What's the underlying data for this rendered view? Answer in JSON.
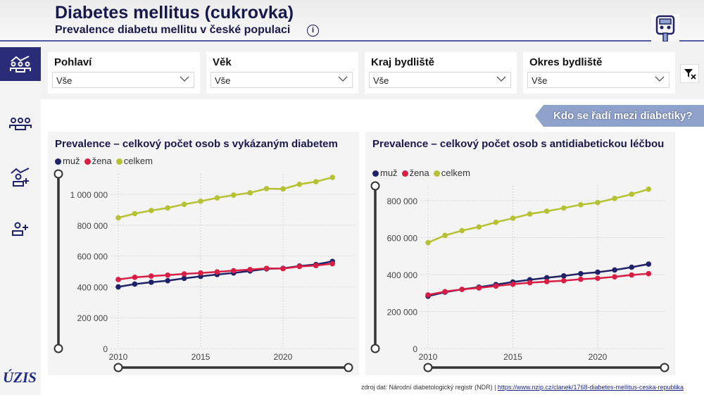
{
  "header": {
    "title": "Diabetes mellitus (cukrovka)",
    "subtitle": "Prevalence diabetu mellitu v české populaci",
    "info_icon": "info-icon",
    "right_icon": "glucometer-icon"
  },
  "sidebar": {
    "items": [
      {
        "icon": "population-trend-icon",
        "active": true
      },
      {
        "icon": "group-icon"
      },
      {
        "icon": "person-add-trend-icon"
      },
      {
        "icon": "person-add-icon"
      }
    ],
    "logo": "ÚZIS"
  },
  "filters": [
    {
      "label": "Pohlaví",
      "value": "Vše"
    },
    {
      "label": "Věk",
      "value": "Vše"
    },
    {
      "label": "Kraj bydliště",
      "value": "Vše"
    },
    {
      "label": "Okres bydliště",
      "value": "Vše"
    }
  ],
  "clear_filters_icon": "filter-clear-icon",
  "nav_button": "Kdo se řadí mezi diabetiky?",
  "colors": {
    "muz": "#1f2266",
    "zena": "#d81e44",
    "celkem": "#b5c234",
    "navy": "#2a2c78"
  },
  "footer": {
    "source": "zdroj dat: Národní diabetologický registr (NDR) | ",
    "link": "https://www.nzip.cz/clanek/1768-diabetes-mellitus-ceska-republika"
  },
  "chart_data": [
    {
      "type": "line",
      "title": "Prevalence – celkový počet osob s vykázaným diabetem",
      "xlabel": "",
      "ylabel": "",
      "ylim": [
        0,
        1130000
      ],
      "grid": true,
      "legend": "top-left",
      "x": [
        2010,
        2011,
        2012,
        2013,
        2014,
        2015,
        2016,
        2017,
        2018,
        2019,
        2020,
        2021,
        2022,
        2023
      ],
      "xticks": [
        "2010",
        "2015",
        "2020"
      ],
      "yticks": [
        "0",
        "200 000",
        "400 000",
        "600 000",
        "800 000",
        "1 000 000"
      ],
      "series": [
        {
          "name": "muž",
          "values": [
            400000,
            418000,
            430000,
            440000,
            455000,
            468000,
            480000,
            490000,
            503000,
            517000,
            520000,
            535000,
            545000,
            565000
          ]
        },
        {
          "name": "žena",
          "values": [
            448000,
            462000,
            470000,
            476000,
            484000,
            490000,
            497000,
            505000,
            512000,
            520000,
            518000,
            532000,
            538000,
            550000
          ]
        },
        {
          "name": "celkem",
          "values": [
            848000,
            875000,
            895000,
            912000,
            935000,
            955000,
            977000,
            995000,
            1010000,
            1037000,
            1035000,
            1065000,
            1082000,
            1110000
          ]
        }
      ]
    },
    {
      "type": "line",
      "title": "Prevalence – celkový počet osob s antidiabetickou léčbou",
      "xlabel": "",
      "ylabel": "",
      "ylim": [
        0,
        880000
      ],
      "grid": true,
      "legend": "top-left",
      "x": [
        2010,
        2011,
        2012,
        2013,
        2014,
        2015,
        2016,
        2017,
        2018,
        2019,
        2020,
        2021,
        2022,
        2023
      ],
      "xticks": [
        "2010",
        "2015",
        "2020"
      ],
      "yticks": [
        "0",
        "200 000",
        "400 000",
        "600 000",
        "800 000"
      ],
      "series": [
        {
          "name": "muž",
          "values": [
            283000,
            305000,
            320000,
            332000,
            346000,
            360000,
            372000,
            383000,
            393000,
            405000,
            413000,
            425000,
            440000,
            457000
          ]
        },
        {
          "name": "žena",
          "values": [
            290000,
            308000,
            320000,
            328000,
            338000,
            348000,
            356000,
            362000,
            367000,
            375000,
            380000,
            388000,
            398000,
            405000
          ]
        },
        {
          "name": "celkem",
          "values": [
            573000,
            612000,
            638000,
            658000,
            683000,
            705000,
            728000,
            743000,
            760000,
            778000,
            790000,
            812000,
            835000,
            862000
          ]
        }
      ]
    }
  ]
}
